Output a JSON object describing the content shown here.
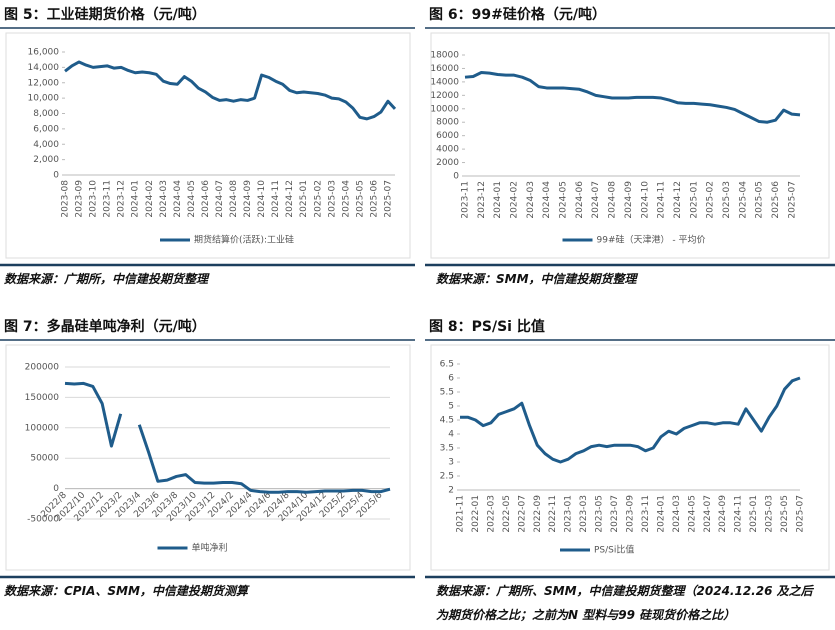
{
  "chart_data": [
    {
      "type": "line",
      "title": "图 5：工业硅期货价格（元/吨）",
      "source": "数据来源：广期所，中信建投期货整理",
      "categories": [
        "2023-08",
        null,
        "2023-09",
        null,
        "2023-10",
        null,
        "2023-11",
        null,
        "2023-12",
        null,
        "2024-01",
        null,
        "2024-02",
        null,
        "2024-03",
        null,
        "2024-04",
        null,
        "2024-05",
        null,
        "2024-06",
        null,
        "2024-07",
        null,
        "2024-08",
        null,
        "2024-09",
        null,
        "2024-10",
        null,
        "2024-11",
        null,
        "2024-12",
        null,
        "2025-01",
        null,
        "2025-02",
        null,
        "2025-03",
        null,
        "2025-04",
        null,
        "2025-05",
        null,
        "2025-06",
        null,
        "2025-07",
        null
      ],
      "series": [
        {
          "name": "期货结算价(活跃):工业硅",
          "color": "#1f5c8b",
          "values": [
            13500,
            14200,
            14700,
            14300,
            14000,
            14100,
            14200,
            13900,
            14000,
            13600,
            13300,
            13400,
            13300,
            13100,
            12200,
            11900,
            11800,
            12800,
            12200,
            11300,
            10800,
            10100,
            9700,
            9800,
            9600,
            9800,
            9700,
            10000,
            13000,
            12700,
            12200,
            11800,
            11000,
            10700,
            10800,
            10700,
            10600,
            10400,
            10000,
            9900,
            9500,
            8700,
            7500,
            7300,
            7600,
            8200,
            9600,
            8600
          ]
        }
      ],
      "ylim": [
        0,
        16000
      ],
      "yticks": [
        0,
        {
          "value": 2000,
          "label": "2,000"
        },
        {
          "value": 4000,
          "label": "4,000"
        },
        {
          "value": 6000,
          "label": "6,000"
        },
        {
          "value": 8000,
          "label": "8,000"
        },
        {
          "value": 10000,
          "label": "10,000"
        },
        {
          "value": 12000,
          "label": "12,000"
        },
        {
          "value": 14000,
          "label": "14,000"
        },
        {
          "value": 16000,
          "label": "16,000"
        }
      ],
      "grid": false
    },
    {
      "type": "line",
      "title": "图 6：99#硅价格（元/吨）",
      "source": "数据来源：SMM，中信建投期货整理",
      "categories": [
        "2023-11",
        null,
        "2023-12",
        null,
        "2024-01",
        null,
        "2024-02",
        null,
        "2024-03",
        null,
        "2024-04",
        null,
        "2024-05",
        null,
        "2024-06",
        null,
        "2024-07",
        null,
        "2024-08",
        null,
        "2024-09",
        null,
        "2024-10",
        null,
        "2024-11",
        null,
        "2024-12",
        null,
        "2025-01",
        null,
        "2025-02",
        null,
        "2025-03",
        null,
        "2025-04",
        null,
        "2025-05",
        null,
        "2025-06",
        null,
        "2025-07",
        null
      ],
      "series": [
        {
          "name": "99#硅（天津港） - 平均价",
          "color": "#1f5c8b",
          "values": [
            14700,
            14800,
            15400,
            15300,
            15100,
            15000,
            15000,
            14700,
            14200,
            13300,
            13100,
            13100,
            13100,
            13000,
            12900,
            12500,
            12000,
            11800,
            11600,
            11600,
            11600,
            11700,
            11700,
            11700,
            11600,
            11300,
            10900,
            10800,
            10800,
            10700,
            10600,
            10400,
            10200,
            9900,
            9300,
            8700,
            8100,
            8000,
            8300,
            9800,
            9200,
            9100
          ]
        }
      ],
      "ylim": [
        0,
        18000
      ],
      "yticks": [
        0,
        2000,
        4000,
        6000,
        8000,
        10000,
        12000,
        14000,
        16000,
        18000
      ],
      "grid": false
    },
    {
      "type": "line",
      "title": "图 7：多晶硅单吨净利（元/吨）",
      "source": "数据来源：CPIA、SMM，中信建投期货测算",
      "categories": [
        "2022/8",
        null,
        "2022/10",
        null,
        "2022/12",
        null,
        "2023/2",
        null,
        "2023/4",
        null,
        "2023/6",
        null,
        "2023/8",
        null,
        "2023/10",
        null,
        "2023/12",
        null,
        "2024/2",
        null,
        "2024/4",
        null,
        "2024/6",
        null,
        "2024/8",
        null,
        "2024/10",
        null,
        "2024/12",
        null,
        "2025/2",
        null,
        "2025/4",
        null,
        "2025/6",
        null
      ],
      "series": [
        {
          "name": "单吨净利",
          "color": "#1f5c8b",
          "values": [
            173000,
            172000,
            173000,
            168000,
            140000,
            70000,
            123000,
            null,
            105000,
            60000,
            12000,
            14000,
            20000,
            23000,
            10000,
            9000,
            9000,
            10000,
            10000,
            8000,
            -3000,
            -5000,
            -6000,
            -6000,
            -5000,
            -5000,
            -6000,
            -5000,
            -4000,
            -4000,
            -4000,
            -3000,
            -3000,
            -5000,
            -5000,
            -1000
          ]
        }
      ],
      "ylim": [
        -50000,
        200000
      ],
      "yticks": [
        -50000,
        0,
        50000,
        100000,
        150000,
        200000
      ],
      "grid": true
    },
    {
      "type": "line",
      "title": "图 8：PS/Si 比值",
      "source": "数据来源：广期所、SMM，中信建投期货整理（2024.12.26 及之后为期货价格之比；之前为N 型料与99 硅现货价格之比）",
      "categories": [
        "2021-11",
        null,
        "2022-01",
        null,
        "2022-03",
        null,
        "2022-05",
        null,
        "2022-07",
        null,
        "2022-09",
        null,
        "2022-11",
        null,
        "2023-01",
        null,
        "2023-03",
        null,
        "2023-05",
        null,
        "2023-07",
        null,
        "2023-09",
        null,
        "2023-11",
        null,
        "2024-01",
        null,
        "2024-03",
        null,
        "2024-05",
        null,
        "2024-07",
        null,
        "2024-09",
        null,
        "2024-11",
        null,
        "2025-01",
        null,
        "2025-03",
        null,
        "2025-05",
        null,
        "2025-07"
      ],
      "series": [
        {
          "name": "PS/Si比值",
          "color": "#1f5c8b",
          "values": [
            4.6,
            4.6,
            4.5,
            4.3,
            4.4,
            4.7,
            4.8,
            4.9,
            5.1,
            4.3,
            3.6,
            3.3,
            3.1,
            3.0,
            3.1,
            3.3,
            3.4,
            3.55,
            3.6,
            3.55,
            3.6,
            3.6,
            3.6,
            3.55,
            3.4,
            3.5,
            3.9,
            4.1,
            4.0,
            4.2,
            4.3,
            4.4,
            4.4,
            4.35,
            4.4,
            4.4,
            4.35,
            4.9,
            4.5,
            4.1,
            4.6,
            5.0,
            5.6,
            5.9,
            6.0
          ]
        }
      ],
      "ylim": [
        2,
        6.5
      ],
      "yticks": [
        2,
        2.5,
        3,
        3.5,
        4,
        4.5,
        5,
        5.5,
        6,
        6.5
      ],
      "grid": false
    }
  ]
}
